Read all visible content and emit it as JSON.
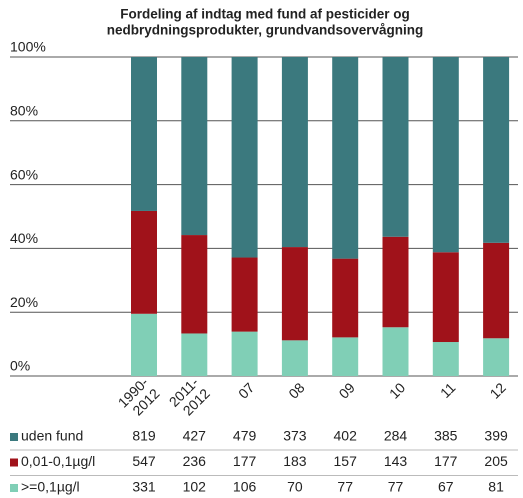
{
  "chart_data": {
    "type": "bar",
    "stack": "percent",
    "title": [
      "Fordeling af indtag med fund af pesticider og",
      "nedbrydningsprodukter, grundvandsovervågning"
    ],
    "categories": [
      "1990-2012",
      "2011-2012",
      "07",
      "08",
      "09",
      "10",
      "11",
      "12"
    ],
    "series": [
      {
        "name": "uden fund",
        "color": "#3b797e",
        "values": [
          819,
          427,
          479,
          373,
          402,
          284,
          385,
          399
        ]
      },
      {
        "name": "0,01-0,1µg/l",
        "color": "#a0121a",
        "values": [
          547,
          236,
          177,
          183,
          157,
          143,
          177,
          205
        ]
      },
      {
        "name": ">=0,1µg/l",
        "color": "#80cfb6",
        "values": [
          331,
          102,
          106,
          70,
          77,
          77,
          67,
          81
        ]
      }
    ],
    "ylim": [
      0,
      100
    ],
    "yticks": [
      {
        "value": 0,
        "label": "0%"
      },
      {
        "value": 20,
        "label": "20%"
      },
      {
        "value": 40,
        "label": "40%"
      },
      {
        "value": 60,
        "label": "60%"
      },
      {
        "value": 80,
        "label": "80%"
      },
      {
        "value": 100,
        "label": "100%"
      }
    ],
    "grid": true
  }
}
